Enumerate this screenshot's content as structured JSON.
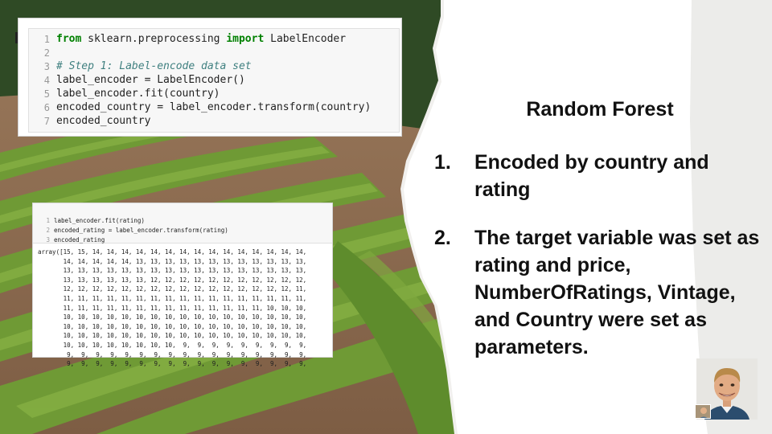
{
  "code_cell_1": {
    "lines": [
      {
        "num": "1",
        "parts": [
          {
            "t": "from",
            "c": "kw"
          },
          {
            "t": " sklearn.preprocessing ",
            "c": ""
          },
          {
            "t": "import",
            "c": "kw"
          },
          {
            "t": " LabelEncoder",
            "c": ""
          }
        ]
      },
      {
        "num": "2",
        "parts": []
      },
      {
        "num": "3",
        "parts": [
          {
            "t": "# Step 1: Label-encode data set",
            "c": "cm"
          }
        ]
      },
      {
        "num": "4",
        "parts": [
          {
            "t": "label_encoder = LabelEncoder()",
            "c": ""
          }
        ]
      },
      {
        "num": "5",
        "parts": [
          {
            "t": "label_encoder.fit(country)",
            "c": ""
          }
        ]
      },
      {
        "num": "6",
        "parts": [
          {
            "t": "encoded_country = label_encoder.transform(country)",
            "c": ""
          }
        ]
      },
      {
        "num": "7",
        "parts": [
          {
            "t": "encoded_country",
            "c": ""
          }
        ]
      }
    ]
  },
  "code_cell_2": {
    "lines": [
      {
        "num": "1",
        "text": "label_encoder.fit(rating)"
      },
      {
        "num": "2",
        "text": "encoded_rating = label_encoder.transform(rating)"
      },
      {
        "num": "3",
        "text": "encoded_rating"
      }
    ],
    "output": [
      "array([15, 15, 14, 14, 14, 14, 14, 14, 14, 14, 14, 14, 14, 14, 14, 14, 14,",
      "       14, 14, 14, 14, 14, 13, 13, 13, 13, 13, 13, 13, 13, 13, 13, 13, 13,",
      "       13, 13, 13, 13, 13, 13, 13, 13, 13, 13, 13, 13, 13, 13, 13, 13, 13,",
      "       13, 13, 13, 13, 13, 13, 12, 12, 12, 12, 12, 12, 12, 12, 12, 12, 12,",
      "       12, 12, 12, 12, 12, 12, 12, 12, 12, 12, 12, 12, 12, 12, 12, 12, 11,",
      "       11, 11, 11, 11, 11, 11, 11, 11, 11, 11, 11, 11, 11, 11, 11, 11, 11,",
      "       11, 11, 11, 11, 11, 11, 11, 11, 11, 11, 11, 11, 11, 11, 10, 10, 10,",
      "       10, 10, 10, 10, 10, 10, 10, 10, 10, 10, 10, 10, 10, 10, 10, 10, 10,",
      "       10, 10, 10, 10, 10, 10, 10, 10, 10, 10, 10, 10, 10, 10, 10, 10, 10,",
      "       10, 10, 10, 10, 10, 10, 10, 10, 10, 10, 10, 10, 10, 10, 10, 10, 10,",
      "       10, 10, 10, 10, 10, 10, 10, 10,  9,  9,  9,  9,  9,  9,  9,  9,  9,",
      "        9,  9,  9,  9,  9,  9,  9,  9,  9,  9,  9,  9,  9,  9,  9,  9,  9,",
      "        9,  9,  9,  9,  9,  9,  9,  9,  9,  9,  9,  9,  9,  9,  9,  9,  9,"
    ]
  },
  "slide": {
    "title": "Random Forest",
    "items": [
      {
        "num": "1.",
        "text": "Encoded by country and rating"
      },
      {
        "num": "2.",
        "text": "The target variable was set as rating and price, NumberOfRatings, Vintage, and Country were set as parameters."
      }
    ]
  },
  "colors": {
    "vineyard_green": "#5f8a2e",
    "soil": "#8a6a4e",
    "keyword": "#008000",
    "comment": "#408080"
  }
}
